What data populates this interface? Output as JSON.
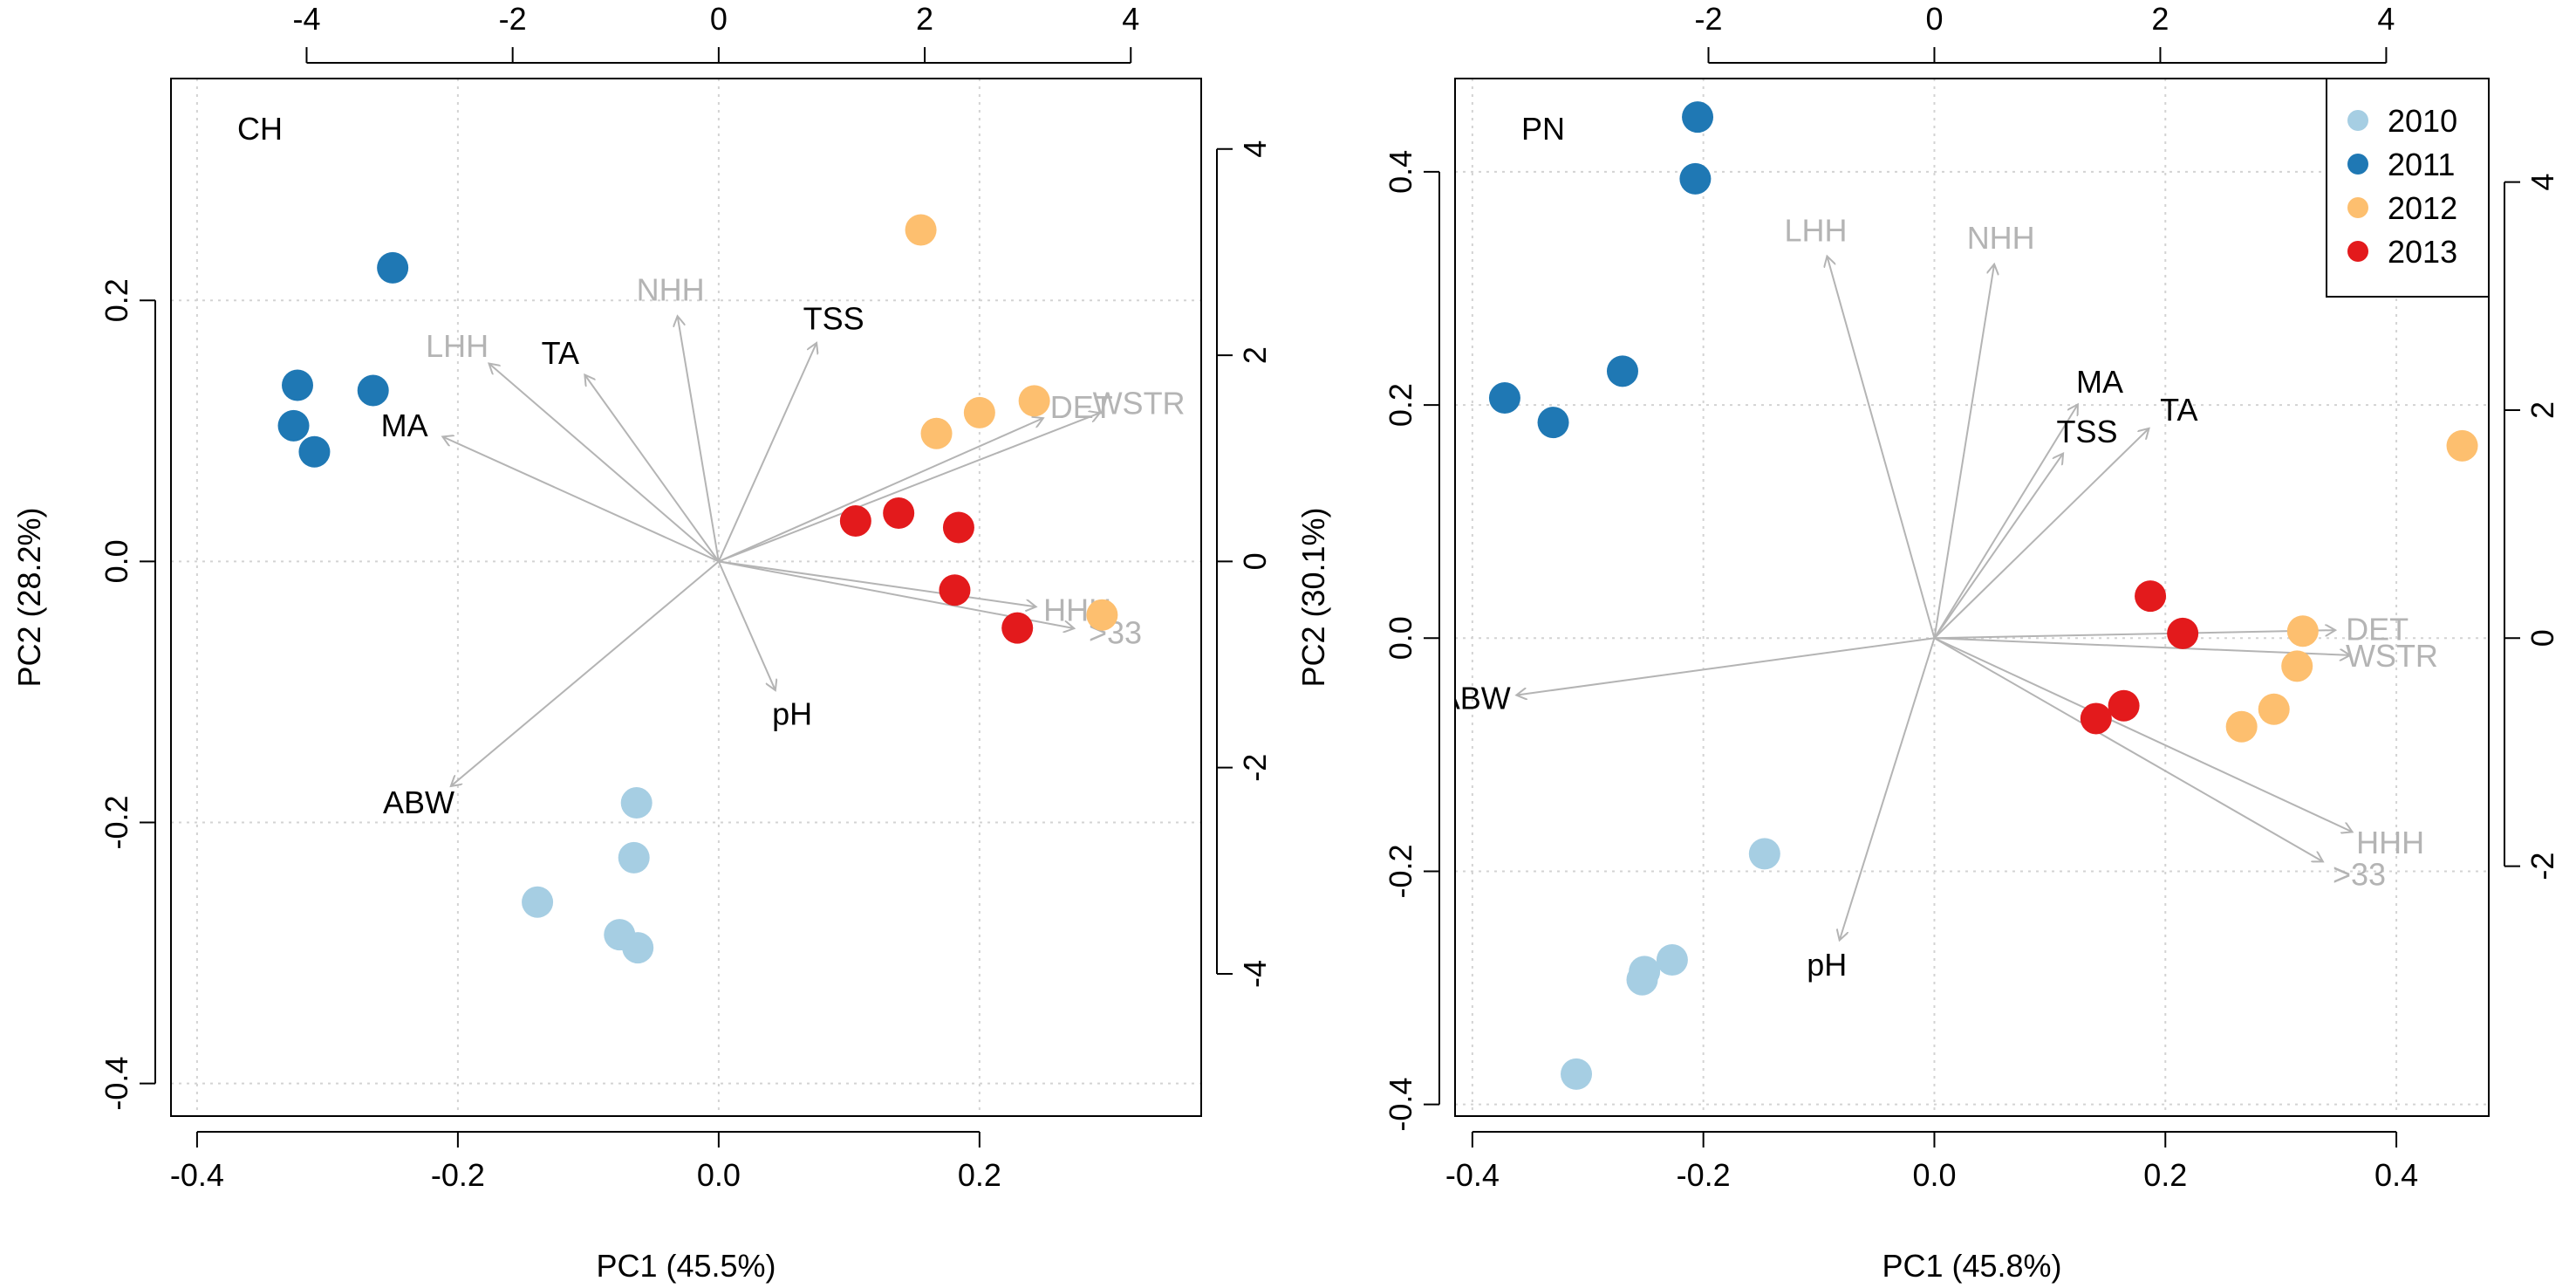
{
  "colors": {
    "2010": "#a6cee3",
    "2011": "#1f78b4",
    "2012": "#fdbf6f",
    "2013": "#e31a1c",
    "arrow": "#b4b4b4",
    "label_dark": "#000000",
    "label_light": "#b4b4b4",
    "grid": "#d3d3d3"
  },
  "legend": {
    "placement": "top-right of right panel",
    "entries": [
      {
        "year": "2010",
        "label": "2010"
      },
      {
        "year": "2011",
        "label": "2011"
      },
      {
        "year": "2012",
        "label": "2012"
      },
      {
        "year": "2013",
        "label": "2013"
      }
    ]
  },
  "chart_data": [
    {
      "type": "scatter",
      "subtype": "pca-biplot",
      "panel_label": "CH",
      "xlabel": "PC1 (45.5%)",
      "ylabel": "PC2 (28.2%)",
      "xlim": [
        -0.42,
        0.37
      ],
      "ylim": [
        -0.425,
        0.37
      ],
      "xticks": [
        -0.4,
        -0.2,
        0.0,
        0.2
      ],
      "xtick_labels": [
        "-0.4",
        "-0.2",
        "0.0",
        "0.2"
      ],
      "yticks": [
        -0.4,
        -0.2,
        0.0,
        0.2
      ],
      "ytick_labels": [
        "-0.4",
        "-0.2",
        "0.0",
        "0.2"
      ],
      "loading_scale": 0.079,
      "top_ticks": [
        -4,
        -2,
        0,
        2,
        4
      ],
      "top_tick_labels": [
        "-4",
        "-2",
        "0",
        "2",
        "4"
      ],
      "right_ticks": [
        -4,
        -2,
        0,
        2,
        4
      ],
      "right_tick_labels": [
        "-4",
        "-2",
        "0",
        "2",
        "4"
      ],
      "grid": true,
      "points": [
        {
          "year": "2010",
          "x": -0.063,
          "y": -0.185
        },
        {
          "year": "2010",
          "x": -0.065,
          "y": -0.227
        },
        {
          "year": "2010",
          "x": -0.139,
          "y": -0.261
        },
        {
          "year": "2010",
          "x": -0.076,
          "y": -0.286
        },
        {
          "year": "2010",
          "x": -0.062,
          "y": -0.296
        },
        {
          "year": "2011",
          "x": -0.25,
          "y": 0.225
        },
        {
          "year": "2011",
          "x": -0.323,
          "y": 0.135
        },
        {
          "year": "2011",
          "x": -0.265,
          "y": 0.131
        },
        {
          "year": "2011",
          "x": -0.326,
          "y": 0.104
        },
        {
          "year": "2011",
          "x": -0.31,
          "y": 0.084
        },
        {
          "year": "2012",
          "x": 0.155,
          "y": 0.254
        },
        {
          "year": "2012",
          "x": 0.242,
          "y": 0.123
        },
        {
          "year": "2012",
          "x": 0.2,
          "y": 0.114
        },
        {
          "year": "2012",
          "x": 0.167,
          "y": 0.098
        },
        {
          "year": "2012",
          "x": 0.294,
          "y": -0.041
        },
        {
          "year": "2013",
          "x": 0.105,
          "y": 0.031
        },
        {
          "year": "2013",
          "x": 0.138,
          "y": 0.037
        },
        {
          "year": "2013",
          "x": 0.184,
          "y": 0.026
        },
        {
          "year": "2013",
          "x": 0.181,
          "y": -0.022
        },
        {
          "year": "2013",
          "x": 0.229,
          "y": -0.051
        }
      ],
      "loadings": [
        {
          "label": "NHH",
          "x": -0.4,
          "y": 2.38,
          "color_key": "label_light"
        },
        {
          "label": "TSS",
          "x": 0.95,
          "y": 2.12,
          "color_key": "label_dark"
        },
        {
          "label": "LHH",
          "x": -2.23,
          "y": 1.92,
          "color_key": "label_light"
        },
        {
          "label": "TA",
          "x": -1.3,
          "y": 1.81,
          "color_key": "label_dark"
        },
        {
          "label": "MA",
          "x": -2.68,
          "y": 1.21,
          "color_key": "label_dark"
        },
        {
          "label": "DET",
          "x": 3.15,
          "y": 1.39,
          "color_key": "label_light"
        },
        {
          "label": "WSTR",
          "x": 3.7,
          "y": 1.44,
          "color_key": "label_light"
        },
        {
          "label": "HHH",
          "x": 3.08,
          "y": -0.44,
          "color_key": "label_light"
        },
        {
          "label": ">33",
          "x": 3.45,
          "y": -0.65,
          "color_key": "label_light"
        },
        {
          "label": "pH",
          "x": 0.55,
          "y": -1.25,
          "color_key": "label_dark"
        },
        {
          "label": "ABW",
          "x": -2.6,
          "y": -2.18,
          "color_key": "label_dark"
        }
      ]
    },
    {
      "type": "scatter",
      "subtype": "pca-biplot",
      "panel_label": "PN",
      "xlabel": "PC1 (45.8%)",
      "ylabel": "PC2 (30.1%)",
      "xlim": [
        -0.415,
        0.48
      ],
      "ylim": [
        -0.41,
        0.48
      ],
      "xticks": [
        -0.4,
        -0.2,
        0.0,
        0.2,
        0.4
      ],
      "xtick_labels": [
        "-0.4",
        "-0.2",
        "0.0",
        "0.2",
        "0.4"
      ],
      "yticks": [
        -0.4,
        -0.2,
        0.0,
        0.2,
        0.4
      ],
      "yticks_labels_note": "right panel ticks",
      "ytick_labels": [
        "-0.4",
        "-0.2",
        "0.0",
        "0.2",
        "0.4"
      ],
      "loading_scale": 0.0978,
      "top_ticks": [
        -2,
        0,
        2,
        4
      ],
      "top_tick_labels": [
        "-2",
        "0",
        "2",
        "4"
      ],
      "right_ticks": [
        -2,
        0,
        2,
        4
      ],
      "right_tick_labels": [
        "-2",
        "0",
        "2",
        "4"
      ],
      "grid": true,
      "points": [
        {
          "year": "2010",
          "x": -0.147,
          "y": -0.185
        },
        {
          "year": "2010",
          "x": -0.227,
          "y": -0.276
        },
        {
          "year": "2010",
          "x": -0.251,
          "y": -0.286
        },
        {
          "year": "2010",
          "x": -0.253,
          "y": -0.293
        },
        {
          "year": "2010",
          "x": -0.31,
          "y": -0.374
        },
        {
          "year": "2011",
          "x": -0.205,
          "y": 0.447
        },
        {
          "year": "2011",
          "x": -0.207,
          "y": 0.394
        },
        {
          "year": "2011",
          "x": -0.27,
          "y": 0.229
        },
        {
          "year": "2011",
          "x": -0.372,
          "y": 0.206
        },
        {
          "year": "2011",
          "x": -0.33,
          "y": 0.185
        },
        {
          "year": "2012",
          "x": 0.457,
          "y": 0.165
        },
        {
          "year": "2012",
          "x": 0.319,
          "y": 0.006
        },
        {
          "year": "2012",
          "x": 0.314,
          "y": -0.024
        },
        {
          "year": "2012",
          "x": 0.294,
          "y": -0.061
        },
        {
          "year": "2012",
          "x": 0.266,
          "y": -0.076
        },
        {
          "year": "2013",
          "x": 0.187,
          "y": 0.036
        },
        {
          "year": "2013",
          "x": 0.215,
          "y": 0.004
        },
        {
          "year": "2013",
          "x": 0.164,
          "y": -0.058
        },
        {
          "year": "2013",
          "x": 0.14,
          "y": -0.069
        }
      ],
      "loadings": [
        {
          "label": "LHH",
          "x": -0.95,
          "y": 3.35,
          "color_key": "label_light"
        },
        {
          "label": "NHH",
          "x": 0.53,
          "y": 3.28,
          "color_key": "label_light"
        },
        {
          "label": "MA",
          "x": 1.27,
          "y": 2.05,
          "color_key": "label_dark"
        },
        {
          "label": "TSS",
          "x": 1.14,
          "y": 1.62,
          "color_key": "label_dark"
        },
        {
          "label": "TA",
          "x": 1.9,
          "y": 1.84,
          "color_key": "label_dark"
        },
        {
          "label": "DET",
          "x": 3.55,
          "y": 0.07,
          "color_key": "label_light"
        },
        {
          "label": "WSTR",
          "x": 3.68,
          "y": -0.15,
          "color_key": "label_light"
        },
        {
          "label": "HHH",
          "x": 3.7,
          "y": -1.7,
          "color_key": "label_light"
        },
        {
          "label": ">33",
          "x": 3.44,
          "y": -1.96,
          "color_key": "label_light"
        },
        {
          "label": "pH",
          "x": -0.84,
          "y": -2.65,
          "color_key": "label_dark"
        },
        {
          "label": "ABW",
          "x": -3.7,
          "y": -0.5,
          "color_key": "label_dark"
        }
      ]
    }
  ]
}
